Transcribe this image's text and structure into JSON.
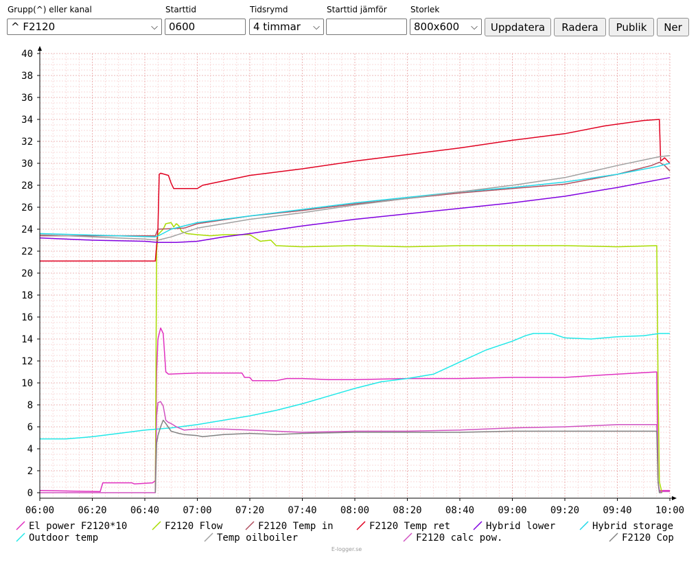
{
  "toolbar": {
    "group_label": "Grupp(^) eller kanal",
    "group_value": "^ F2120",
    "start_label": "Starttid",
    "start_value": "0600",
    "span_label": "Tidsrymd",
    "span_value": "4 timmar",
    "compare_label": "Starttid jämför",
    "compare_value": "",
    "size_label": "Storlek",
    "size_value": "800x600",
    "update_btn": "Uppdatera",
    "delete_btn": "Radera",
    "public_btn": "Publik",
    "down_btn": "Ner"
  },
  "chart_data": {
    "type": "line",
    "title": "",
    "xlabel": "",
    "ylabel": "",
    "x_ticks": [
      "06:00",
      "06:20",
      "06:40",
      "07:00",
      "07:20",
      "07:40",
      "08:00",
      "08:20",
      "08:40",
      "09:00",
      "09:20",
      "09:40",
      "10:00"
    ],
    "y_ticks": [
      0,
      2,
      4,
      6,
      8,
      10,
      12,
      14,
      16,
      18,
      20,
      22,
      24,
      26,
      28,
      30,
      32,
      34,
      36,
      38,
      40
    ],
    "xlim_minutes": [
      0,
      240
    ],
    "ylim": [
      -0.6,
      40.5
    ],
    "grid": true,
    "legend_placement": "bottom",
    "watermark": "E-logger.se",
    "series": [
      {
        "name": "El power F2120*10",
        "color": "#e030c0",
        "points": [
          [
            0,
            0.2
          ],
          [
            23,
            0.1
          ],
          [
            24,
            0.9
          ],
          [
            35,
            0.9
          ],
          [
            36,
            0.8
          ],
          [
            43,
            0.9
          ],
          [
            44,
            1.1
          ],
          [
            44.5,
            11
          ],
          [
            45,
            14
          ],
          [
            46,
            15
          ],
          [
            47,
            14.5
          ],
          [
            48,
            11
          ],
          [
            49,
            10.8
          ],
          [
            60,
            10.9
          ],
          [
            65,
            10.9
          ],
          [
            70,
            10.9
          ],
          [
            77,
            10.9
          ],
          [
            78,
            10.5
          ],
          [
            80,
            10.5
          ],
          [
            81,
            10.2
          ],
          [
            90,
            10.2
          ],
          [
            94,
            10.4
          ],
          [
            100,
            10.4
          ],
          [
            110,
            10.3
          ],
          [
            120,
            10.3
          ],
          [
            140,
            10.4
          ],
          [
            160,
            10.4
          ],
          [
            180,
            10.5
          ],
          [
            200,
            10.5
          ],
          [
            220,
            10.8
          ],
          [
            235,
            11.0
          ],
          [
            235.5,
            1.0
          ],
          [
            236,
            0.2
          ],
          [
            240,
            0.2
          ]
        ]
      },
      {
        "name": "F2120 Flow",
        "color": "#a8dc00",
        "points": [
          [
            44,
            0
          ],
          [
            44.5,
            22
          ],
          [
            45,
            23.5
          ],
          [
            47,
            24
          ],
          [
            48,
            24.5
          ],
          [
            50,
            24.6
          ],
          [
            51,
            24.2
          ],
          [
            52,
            24.5
          ],
          [
            53,
            24.3
          ],
          [
            54,
            23.8
          ],
          [
            56,
            23.6
          ],
          [
            60,
            23.5
          ],
          [
            65,
            23.4
          ],
          [
            70,
            23.5
          ],
          [
            80,
            23.5
          ],
          [
            84,
            22.9
          ],
          [
            88,
            23.0
          ],
          [
            90,
            22.5
          ],
          [
            100,
            22.4
          ],
          [
            120,
            22.5
          ],
          [
            140,
            22.4
          ],
          [
            160,
            22.5
          ],
          [
            180,
            22.5
          ],
          [
            200,
            22.5
          ],
          [
            220,
            22.4
          ],
          [
            235,
            22.5
          ],
          [
            235.5,
            10
          ],
          [
            236,
            1
          ],
          [
            237,
            0
          ]
        ]
      },
      {
        "name": "F2120 Temp in",
        "color": "#b05060",
        "points": [
          [
            0,
            23.4
          ],
          [
            44,
            23.4
          ],
          [
            45,
            24.0
          ],
          [
            55,
            24.1
          ],
          [
            60,
            24.5
          ],
          [
            80,
            25.2
          ],
          [
            100,
            25.7
          ],
          [
            120,
            26.3
          ],
          [
            140,
            26.8
          ],
          [
            160,
            27.3
          ],
          [
            180,
            27.7
          ],
          [
            200,
            28.1
          ],
          [
            220,
            29.0
          ],
          [
            233,
            29.8
          ],
          [
            236,
            30.1
          ],
          [
            238,
            29.8
          ],
          [
            240,
            29.3
          ]
        ]
      },
      {
        "name": "F2120 Temp ret",
        "color": "#e00020",
        "points": [
          [
            0,
            21.1
          ],
          [
            44,
            21.1
          ],
          [
            45,
            24
          ],
          [
            45.5,
            29
          ],
          [
            46,
            29.1
          ],
          [
            49,
            28.9
          ],
          [
            50,
            28.2
          ],
          [
            51,
            27.7
          ],
          [
            60,
            27.7
          ],
          [
            62,
            28.0
          ],
          [
            70,
            28.4
          ],
          [
            80,
            28.9
          ],
          [
            100,
            29.5
          ],
          [
            120,
            30.2
          ],
          [
            140,
            30.8
          ],
          [
            160,
            31.4
          ],
          [
            180,
            32.1
          ],
          [
            200,
            32.7
          ],
          [
            215,
            33.4
          ],
          [
            230,
            33.9
          ],
          [
            236,
            34.0
          ],
          [
            236.5,
            30.2
          ],
          [
            238,
            30.5
          ],
          [
            240,
            30.0
          ]
        ]
      },
      {
        "name": "Hybrid lower",
        "color": "#8000e0",
        "points": [
          [
            0,
            23.2
          ],
          [
            20,
            23.0
          ],
          [
            40,
            22.9
          ],
          [
            45,
            22.8
          ],
          [
            52,
            22.8
          ],
          [
            60,
            22.9
          ],
          [
            70,
            23.3
          ],
          [
            80,
            23.6
          ],
          [
            100,
            24.3
          ],
          [
            120,
            24.9
          ],
          [
            140,
            25.4
          ],
          [
            160,
            25.9
          ],
          [
            180,
            26.4
          ],
          [
            200,
            27.0
          ],
          [
            220,
            27.8
          ],
          [
            240,
            28.7
          ]
        ]
      },
      {
        "name": "Hybrid storage",
        "color": "#20d8e8",
        "points": [
          [
            0,
            23.6
          ],
          [
            44,
            23.3
          ],
          [
            46,
            23.5
          ],
          [
            50,
            24.0
          ],
          [
            60,
            24.6
          ],
          [
            80,
            25.2
          ],
          [
            100,
            25.8
          ],
          [
            120,
            26.4
          ],
          [
            140,
            26.9
          ],
          [
            160,
            27.4
          ],
          [
            180,
            27.8
          ],
          [
            200,
            28.3
          ],
          [
            220,
            29.0
          ],
          [
            235,
            29.7
          ],
          [
            240,
            30.0
          ]
        ]
      },
      {
        "name": "Outdoor temp",
        "color": "#20e8e8",
        "points": [
          [
            0,
            4.9
          ],
          [
            10,
            4.9
          ],
          [
            20,
            5.1
          ],
          [
            30,
            5.4
          ],
          [
            40,
            5.7
          ],
          [
            50,
            5.9
          ],
          [
            60,
            6.2
          ],
          [
            70,
            6.6
          ],
          [
            80,
            7.0
          ],
          [
            90,
            7.5
          ],
          [
            100,
            8.1
          ],
          [
            110,
            8.8
          ],
          [
            120,
            9.5
          ],
          [
            130,
            10.1
          ],
          [
            140,
            10.4
          ],
          [
            150,
            10.8
          ],
          [
            160,
            11.9
          ],
          [
            170,
            13.0
          ],
          [
            180,
            13.8
          ],
          [
            185,
            14.3
          ],
          [
            188,
            14.5
          ],
          [
            190,
            14.5
          ],
          [
            195,
            14.5
          ],
          [
            200,
            14.1
          ],
          [
            210,
            14.0
          ],
          [
            220,
            14.2
          ],
          [
            230,
            14.3
          ],
          [
            236,
            14.5
          ],
          [
            240,
            14.5
          ]
        ]
      },
      {
        "name": "Temp oilboiler",
        "color": "#a0a0a0",
        "points": [
          [
            0,
            23.5
          ],
          [
            20,
            23.3
          ],
          [
            40,
            23.1
          ],
          [
            45,
            23.0
          ],
          [
            50,
            23.3
          ],
          [
            60,
            24.1
          ],
          [
            80,
            24.9
          ],
          [
            100,
            25.5
          ],
          [
            120,
            26.2
          ],
          [
            140,
            26.8
          ],
          [
            160,
            27.4
          ],
          [
            180,
            28.0
          ],
          [
            200,
            28.7
          ],
          [
            220,
            29.8
          ],
          [
            236,
            30.6
          ],
          [
            240,
            30.7
          ]
        ]
      },
      {
        "name": "F2120 calc pow.",
        "color": "#d050c0",
        "points": [
          [
            0,
            0
          ],
          [
            44,
            0
          ],
          [
            44.5,
            7
          ],
          [
            45,
            8.2
          ],
          [
            46,
            8.3
          ],
          [
            47,
            7.9
          ],
          [
            48,
            6.6
          ],
          [
            49,
            6.4
          ],
          [
            50,
            6.3
          ],
          [
            52,
            6.0
          ],
          [
            55,
            5.7
          ],
          [
            60,
            5.8
          ],
          [
            70,
            5.8
          ],
          [
            80,
            5.7
          ],
          [
            90,
            5.6
          ],
          [
            100,
            5.5
          ],
          [
            120,
            5.6
          ],
          [
            140,
            5.6
          ],
          [
            160,
            5.7
          ],
          [
            180,
            5.9
          ],
          [
            200,
            6.0
          ],
          [
            220,
            6.2
          ],
          [
            235,
            6.2
          ],
          [
            235.5,
            1
          ],
          [
            236,
            0.1
          ],
          [
            240,
            0.1
          ]
        ]
      },
      {
        "name": "F2120 Cop",
        "color": "#808080",
        "points": [
          [
            44,
            0
          ],
          [
            44.5,
            4.5
          ],
          [
            45,
            5.2
          ],
          [
            46,
            6.0
          ],
          [
            47,
            6.6
          ],
          [
            48,
            6.3
          ],
          [
            50,
            5.6
          ],
          [
            53,
            5.4
          ],
          [
            55,
            5.3
          ],
          [
            60,
            5.2
          ],
          [
            62,
            5.1
          ],
          [
            70,
            5.3
          ],
          [
            80,
            5.4
          ],
          [
            90,
            5.3
          ],
          [
            100,
            5.4
          ],
          [
            120,
            5.5
          ],
          [
            140,
            5.5
          ],
          [
            160,
            5.5
          ],
          [
            180,
            5.6
          ],
          [
            200,
            5.6
          ],
          [
            220,
            5.6
          ],
          [
            235,
            5.6
          ],
          [
            235.5,
            1
          ],
          [
            236,
            0
          ],
          [
            237,
            0
          ]
        ]
      }
    ]
  }
}
